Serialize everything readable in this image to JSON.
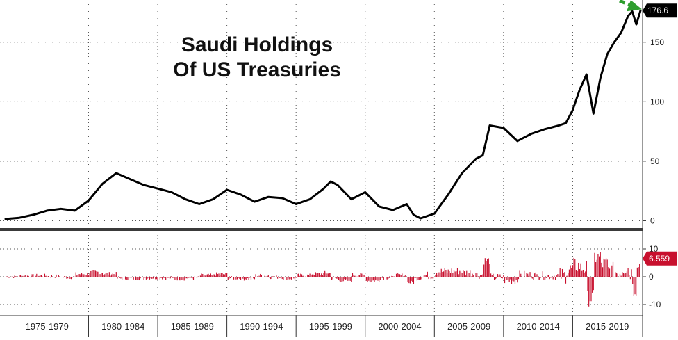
{
  "chart_data": [
    {
      "type": "line",
      "title_lines": [
        "Saudi Holdings",
        "Of US Treasuries"
      ],
      "ylim": [
        -5,
        182
      ],
      "yticks": [
        0,
        50,
        100,
        150
      ],
      "last_value_label": "176.6",
      "line_color": "#000000",
      "flag_color": "#000000",
      "arrow_color": "#2e9e2e",
      "x": [
        1974.0,
        1975.0,
        1976.0,
        1977.0,
        1978.0,
        1979.0,
        1980.0,
        1981.0,
        1982.0,
        1983.0,
        1984.0,
        1985.0,
        1986.0,
        1987.0,
        1988.0,
        1989.0,
        1990.0,
        1991.0,
        1992.0,
        1993.0,
        1994.0,
        1995.0,
        1996.0,
        1997.0,
        1997.5,
        1998.0,
        1999.0,
        2000.0,
        2001.0,
        2002.0,
        2003.0,
        2003.5,
        2004.0,
        2005.0,
        2006.0,
        2007.0,
        2008.0,
        2008.5,
        2009.0,
        2010.0,
        2011.0,
        2012.0,
        2013.0,
        2014.0,
        2014.5,
        2015.0,
        2015.5,
        2016.0,
        2016.5,
        2017.0,
        2017.5,
        2018.0,
        2018.5,
        2019.0,
        2019.3,
        2019.6,
        2019.9
      ],
      "y": [
        1.5,
        2.5,
        5,
        8.5,
        10,
        8.5,
        17,
        31,
        40,
        35,
        30,
        27,
        24,
        18,
        14,
        18,
        26,
        22,
        16,
        20,
        19,
        14,
        18,
        27,
        33,
        30,
        18,
        24,
        12,
        9,
        14,
        5,
        2,
        6,
        22,
        40,
        52,
        55,
        80,
        78,
        67,
        73,
        77,
        80,
        82,
        93,
        110,
        123,
        90,
        120,
        140,
        150,
        158,
        172,
        176,
        165,
        176.6
      ]
    },
    {
      "type": "bar",
      "ylim": [
        -12,
        15
      ],
      "yticks": [
        -10,
        0,
        10
      ],
      "last_value_label": "6.559",
      "bar_color": "#c8102e",
      "categories": [
        "1975-1979",
        "1980-1984",
        "1985-1989",
        "1990-1994",
        "1995-1999",
        "2000-2004",
        "2005-2009",
        "2010-2014",
        "2015-2019"
      ]
    }
  ]
}
